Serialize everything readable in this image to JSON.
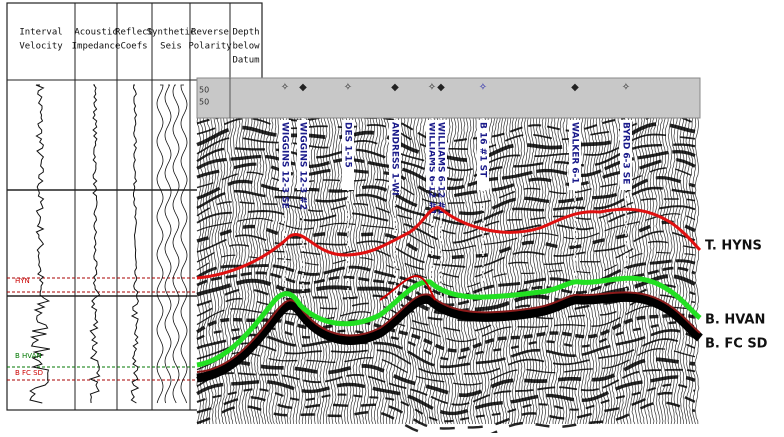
{
  "header": {
    "columns": [
      {
        "lines": [
          "Interval",
          "Velocity"
        ]
      },
      {
        "lines": [
          "Acoustic",
          "Impedance"
        ]
      },
      {
        "lines": [
          "Reflect",
          "Coefs"
        ]
      },
      {
        "lines": [
          "Synthetic",
          "Seis"
        ]
      },
      {
        "lines": [
          "Reverse",
          "Polarity"
        ]
      },
      {
        "lines": [
          "Depth",
          "below",
          "Datum"
        ]
      }
    ]
  },
  "ruler": {
    "labels": [
      "50",
      "50"
    ]
  },
  "wells": [
    "WIGGINS 12-3 SE",
    "WIGGINS 12-3 #2",
    "DES 1-15",
    "ANDRESS 1-WI",
    "WILLIAMS 6-12 #1",
    "WILLIAMS 6-12 #1",
    "B 16 #1 ST",
    "WALKER 6-1",
    "BYRD 6-3 SE"
  ],
  "left_markers": [
    "HYN",
    "B HVAN",
    "B FC SD"
  ],
  "horizons": [
    "T. HYNS",
    "B. HVAN",
    "B. FC SD"
  ]
}
